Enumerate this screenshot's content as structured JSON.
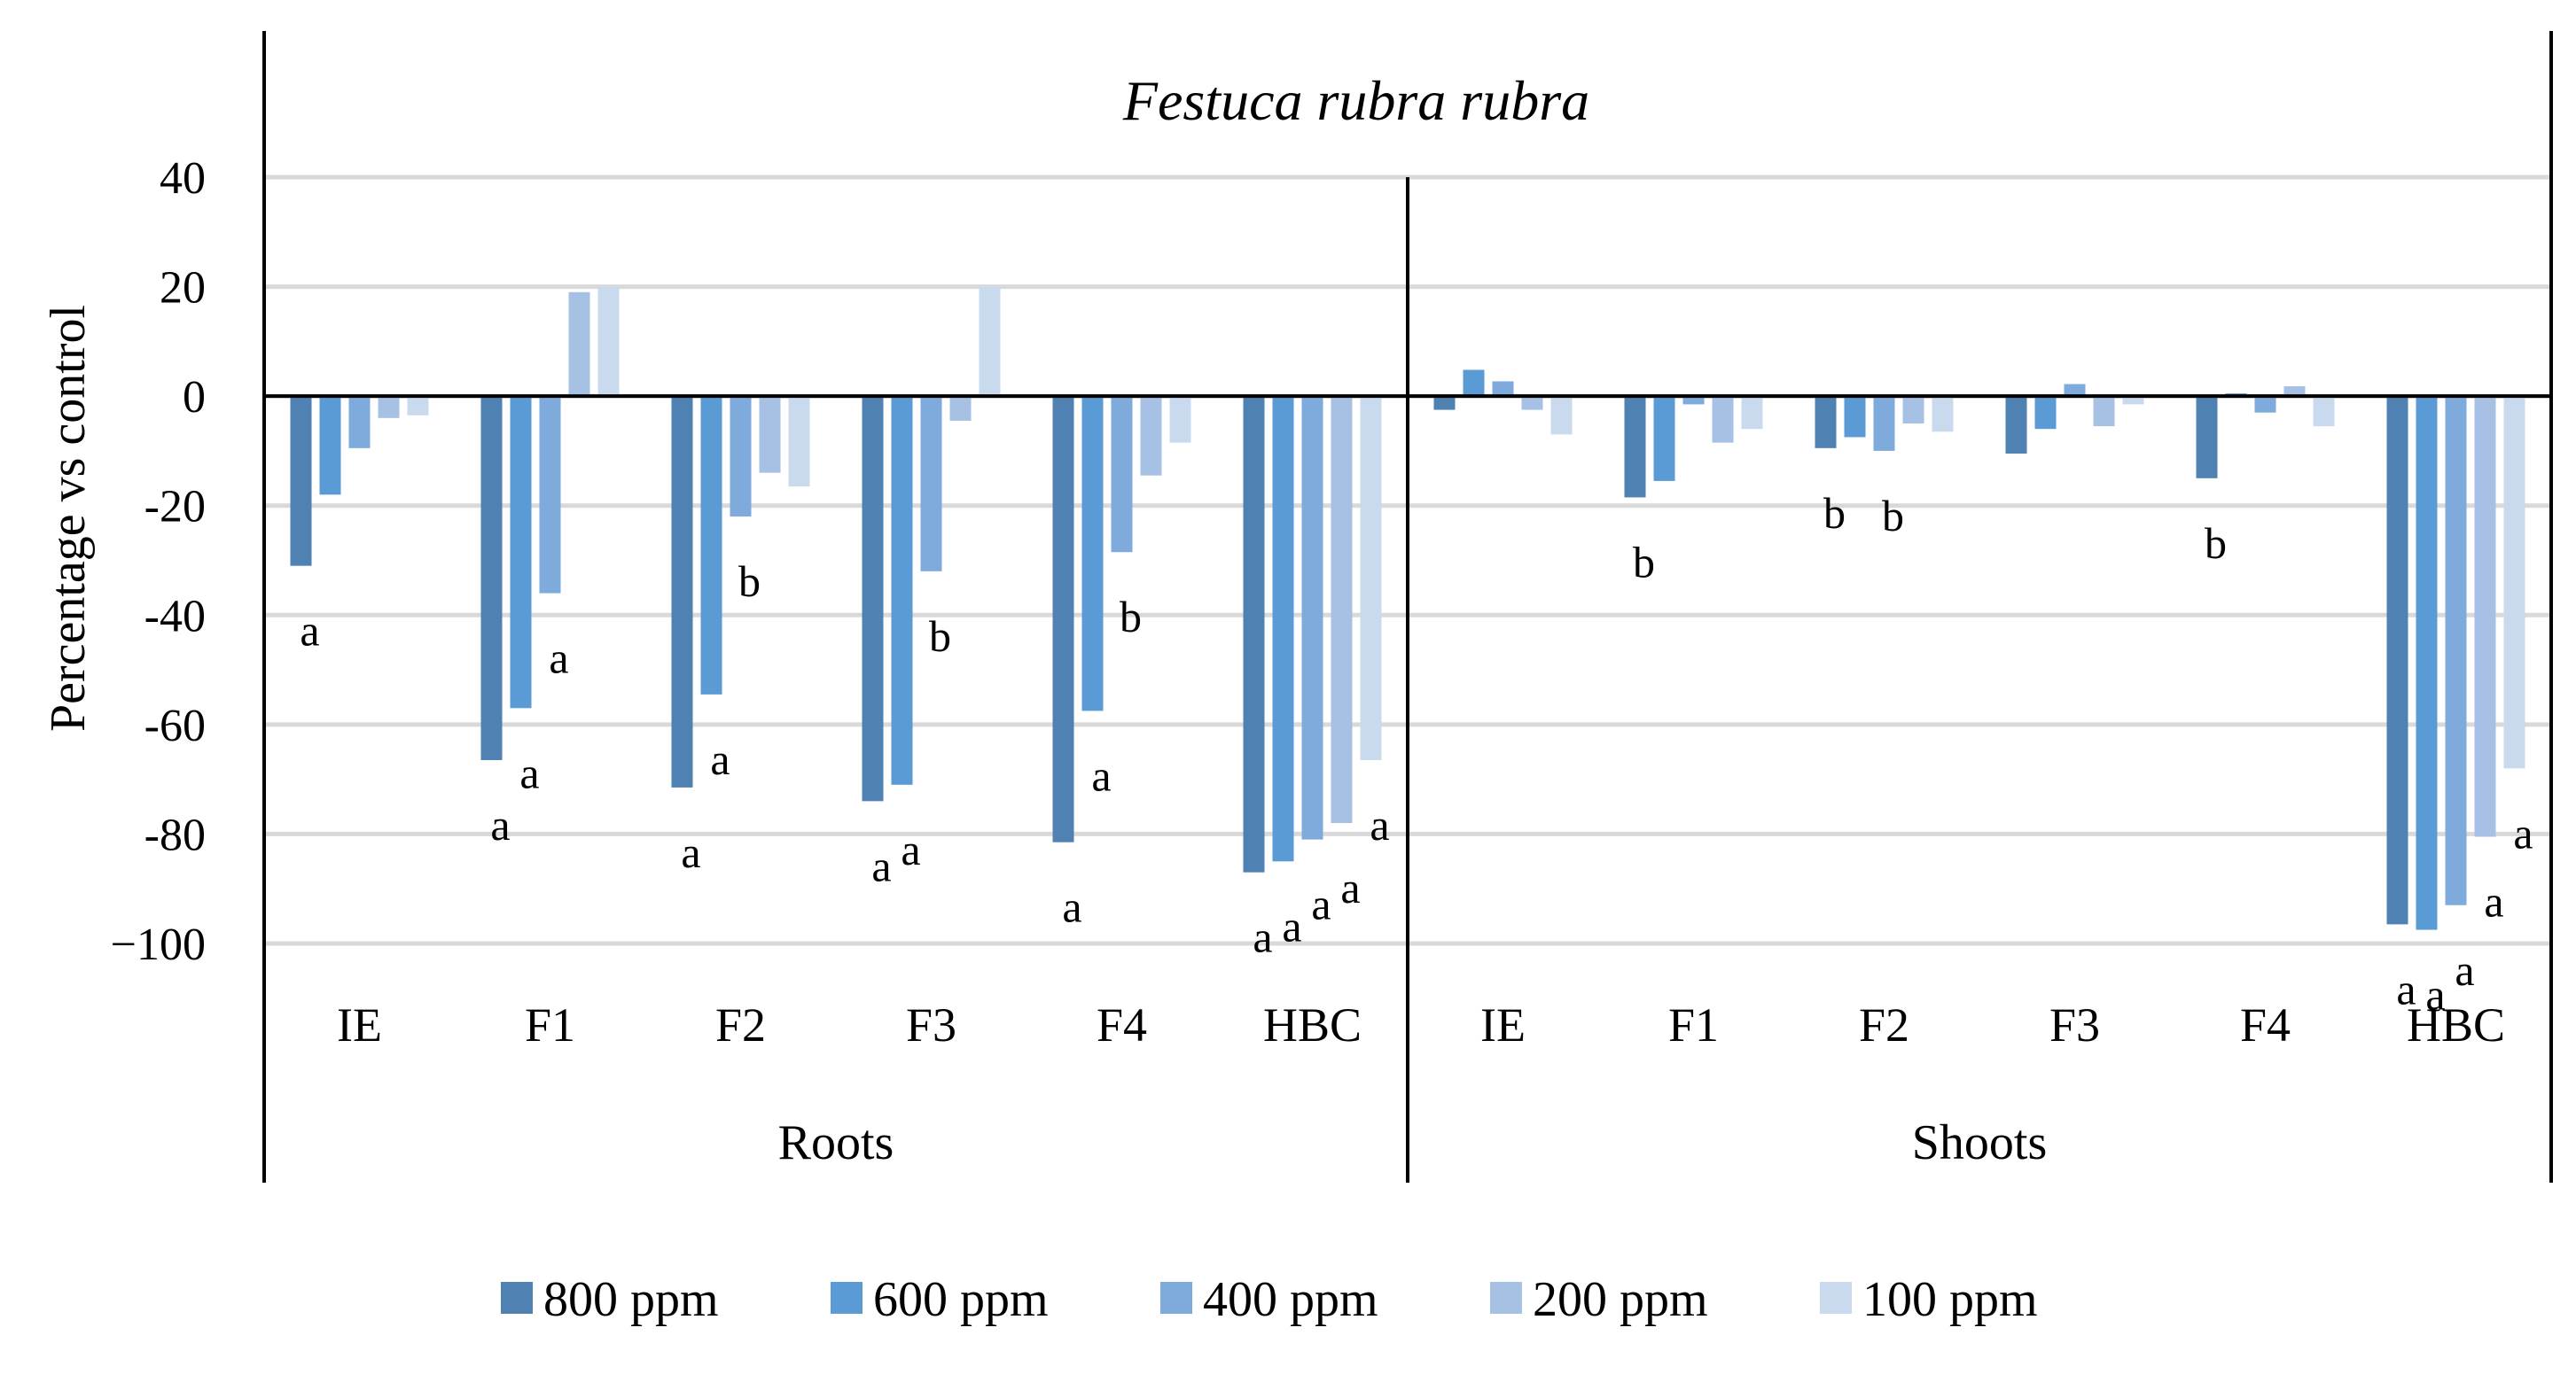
{
  "chart_data": {
    "type": "bar",
    "title": "Festuca rubra rubra",
    "ylabel": "Percentage vs control",
    "xlabel": "",
    "ylim": [
      -100,
      40
    ],
    "yticks": [
      40,
      20,
      0,
      -20,
      -40,
      -60,
      -80,
      -100
    ],
    "ytick_labels": [
      "40",
      "20",
      "0",
      "-20",
      "-40",
      "-60",
      "-80",
      "−100"
    ],
    "grid": true,
    "legend_position": "bottom",
    "series": [
      {
        "name": "800 ppm",
        "color": "#4f81b3"
      },
      {
        "name": "600 ppm",
        "color": "#5b9bd5"
      },
      {
        "name": "400 ppm",
        "color": "#7eaadc"
      },
      {
        "name": "200 ppm",
        "color": "#a7c1e5"
      },
      {
        "name": "100 ppm",
        "color": "#c9d9ee"
      }
    ],
    "groups": [
      {
        "name": "Roots",
        "categories": [
          {
            "name": "IE",
            "values": [
              -31,
              -18,
              -9.5,
              -4,
              -3.5
            ],
            "labels": [
              "a",
              "",
              "",
              "",
              ""
            ]
          },
          {
            "name": "F1",
            "values": [
              -66.5,
              -57,
              -36,
              19,
              20
            ],
            "labels": [
              "a",
              "a",
              "a",
              "",
              ""
            ]
          },
          {
            "name": "F2",
            "values": [
              -71.5,
              -54.5,
              -22,
              -14,
              -16.5
            ],
            "labels": [
              "a",
              "a",
              "b",
              "",
              ""
            ]
          },
          {
            "name": "F3",
            "values": [
              -74,
              -71,
              -32,
              -4.5,
              20
            ],
            "labels": [
              "a",
              "a",
              "b",
              "",
              ""
            ]
          },
          {
            "name": "F4",
            "values": [
              -81.5,
              -57.5,
              -28.5,
              -14.5,
              -8.5
            ],
            "labels": [
              "a",
              "a",
              "b",
              "",
              ""
            ]
          },
          {
            "name": "HBC",
            "values": [
              -87,
              -85,
              -81,
              -78,
              -66.5
            ],
            "labels": [
              "a",
              "a",
              "a",
              "a",
              "a"
            ]
          }
        ]
      },
      {
        "name": "Shoots",
        "categories": [
          {
            "name": "IE",
            "values": [
              -2.5,
              4.8,
              2.7,
              -2.5,
              -7
            ],
            "labels": [
              "",
              "",
              "",
              "",
              ""
            ]
          },
          {
            "name": "F1",
            "values": [
              -18.5,
              -15.5,
              -1.5,
              -8.5,
              -6
            ],
            "labels": [
              "b",
              "",
              "",
              "",
              ""
            ]
          },
          {
            "name": "F2",
            "values": [
              -9.5,
              -7.5,
              -10,
              -5,
              -6.5
            ],
            "labels": [
              "b",
              "",
              "b",
              "",
              ""
            ]
          },
          {
            "name": "F3",
            "values": [
              -10.5,
              -6,
              2.2,
              -5.5,
              -1.5
            ],
            "labels": [
              "",
              "",
              "",
              "",
              ""
            ]
          },
          {
            "name": "F4",
            "values": [
              -15,
              0.5,
              -3,
              1.8,
              -5.5
            ],
            "labels": [
              "b",
              "",
              "",
              "",
              ""
            ]
          },
          {
            "name": "HBC",
            "values": [
              -96.5,
              -97.5,
              -93,
              -80.5,
              -68
            ],
            "labels": [
              "a",
              "a",
              "a",
              "a",
              "a"
            ]
          }
        ]
      }
    ]
  }
}
